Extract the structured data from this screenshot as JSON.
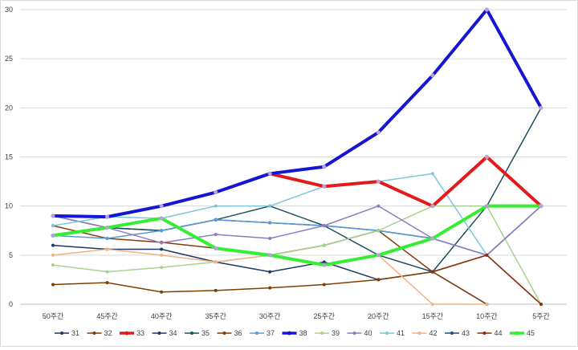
{
  "chart_data": {
    "type": "line",
    "title": "",
    "xlabel": "",
    "ylabel": "",
    "ylim": [
      0,
      30
    ],
    "y_ticks": [
      0,
      5,
      10,
      15,
      20,
      25,
      30
    ],
    "grid": "horizontal",
    "legend_position": "bottom",
    "categories": [
      "50주간",
      "45주간",
      "40주간",
      "35주간",
      "30주간",
      "25주간",
      "20주간",
      "15주간",
      "10주간",
      "5주간"
    ],
    "series": [
      {
        "name": "31",
        "color": "#1f3864",
        "emphasis": false,
        "values": [
          6.0,
          5.6,
          5.6,
          4.3,
          3.3,
          4.3,
          2.5,
          3.3,
          0,
          null
        ]
      },
      {
        "name": "32",
        "color": "#843c0c",
        "emphasis": false,
        "values": [
          8.0,
          6.7,
          6.3,
          5.7,
          5.0,
          6.0,
          7.5,
          3.3,
          0,
          null
        ]
      },
      {
        "name": "33",
        "color": "#e31a1c",
        "emphasis": true,
        "values": [
          null,
          null,
          null,
          null,
          13.3,
          12.0,
          12.5,
          10.0,
          15.0,
          10.0
        ]
      },
      {
        "name": "34",
        "color": "#203864",
        "emphasis": false,
        "values": [
          9.0,
          7.8,
          7.5,
          8.6,
          8.3,
          8.0,
          7.5,
          6.7,
          5.0,
          10.0
        ]
      },
      {
        "name": "35",
        "color": "#1f4e5f",
        "emphasis": false,
        "values": [
          7.0,
          7.8,
          7.5,
          8.6,
          10.0,
          8.0,
          5.0,
          3.3,
          10.0,
          20.0
        ]
      },
      {
        "name": "36",
        "color": "#7f3f00",
        "emphasis": false,
        "values": [
          2.0,
          2.2,
          1.25,
          1.4,
          1.67,
          2.0,
          2.5,
          3.3,
          5.0,
          0
        ]
      },
      {
        "name": "37",
        "color": "#5b9bd5",
        "emphasis": false,
        "values": [
          7.0,
          6.7,
          7.5,
          8.6,
          8.3,
          8.0,
          7.5,
          6.7,
          5.0,
          null
        ]
      },
      {
        "name": "38",
        "color": "#1515d4",
        "emphasis": true,
        "values": [
          9.0,
          8.9,
          10.0,
          11.4,
          13.3,
          14.0,
          17.5,
          23.3,
          30.0,
          20.0
        ]
      },
      {
        "name": "39",
        "color": "#a9d18e",
        "emphasis": false,
        "values": [
          4.0,
          3.3,
          3.75,
          4.3,
          5.0,
          6.0,
          7.5,
          10.0,
          10.0,
          0
        ]
      },
      {
        "name": "40",
        "color": "#8e7cc3",
        "emphasis": false,
        "values": [
          9.0,
          7.8,
          6.25,
          7.1,
          6.7,
          8.0,
          10.0,
          6.7,
          5.0,
          10.0
        ]
      },
      {
        "name": "41",
        "color": "#7fc6d9",
        "emphasis": false,
        "values": [
          8.0,
          8.9,
          8.75,
          10.0,
          10.0,
          12.0,
          12.5,
          13.3,
          5.0,
          null
        ]
      },
      {
        "name": "42",
        "color": "#f4b183",
        "emphasis": false,
        "values": [
          5.0,
          5.6,
          5.0,
          4.3,
          5.0,
          4.0,
          5.0,
          0,
          0,
          null
        ]
      },
      {
        "name": "43",
        "color": "#1f4e79",
        "emphasis": false,
        "values": [
          null,
          null,
          null,
          null,
          null,
          null,
          null,
          null,
          null,
          null
        ]
      },
      {
        "name": "44",
        "color": "#8b2e0f",
        "emphasis": false,
        "values": [
          null,
          null,
          null,
          null,
          null,
          null,
          null,
          3.3,
          5.0,
          0
        ]
      },
      {
        "name": "45",
        "color": "#33ee33",
        "emphasis": true,
        "values": [
          7.0,
          7.8,
          8.75,
          5.7,
          5.0,
          4.0,
          5.0,
          6.7,
          10.0,
          10.0
        ]
      }
    ]
  }
}
